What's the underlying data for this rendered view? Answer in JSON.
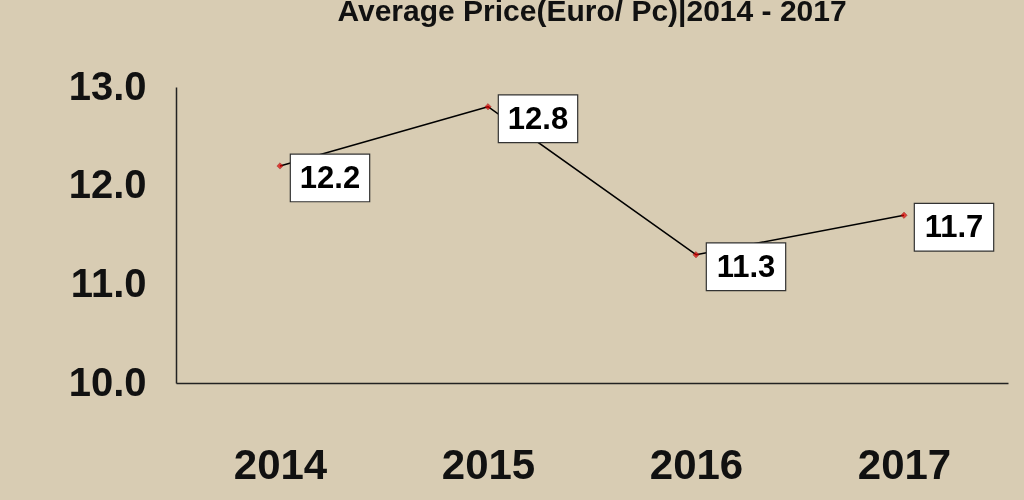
{
  "chart_data": {
    "type": "line",
    "title": "Average Price(Euro/ Pc)|2014 - 2017",
    "categories": [
      "2014",
      "2015",
      "2016",
      "2017"
    ],
    "series": [
      {
        "color": "#000000",
        "values": [
          12.2,
          12.8,
          11.3,
          11.7
        ]
      }
    ],
    "ylim": [
      10,
      13
    ],
    "yticks": [
      {
        "value": 10,
        "label": "10.0"
      },
      {
        "value": 11,
        "label": "11.0"
      },
      {
        "value": 12,
        "label": "12.0"
      },
      {
        "value": 13,
        "label": "13.0"
      }
    ],
    "grid": false,
    "legend": false,
    "marker": "diamond",
    "line_style": "solid",
    "data_labels": true
  }
}
